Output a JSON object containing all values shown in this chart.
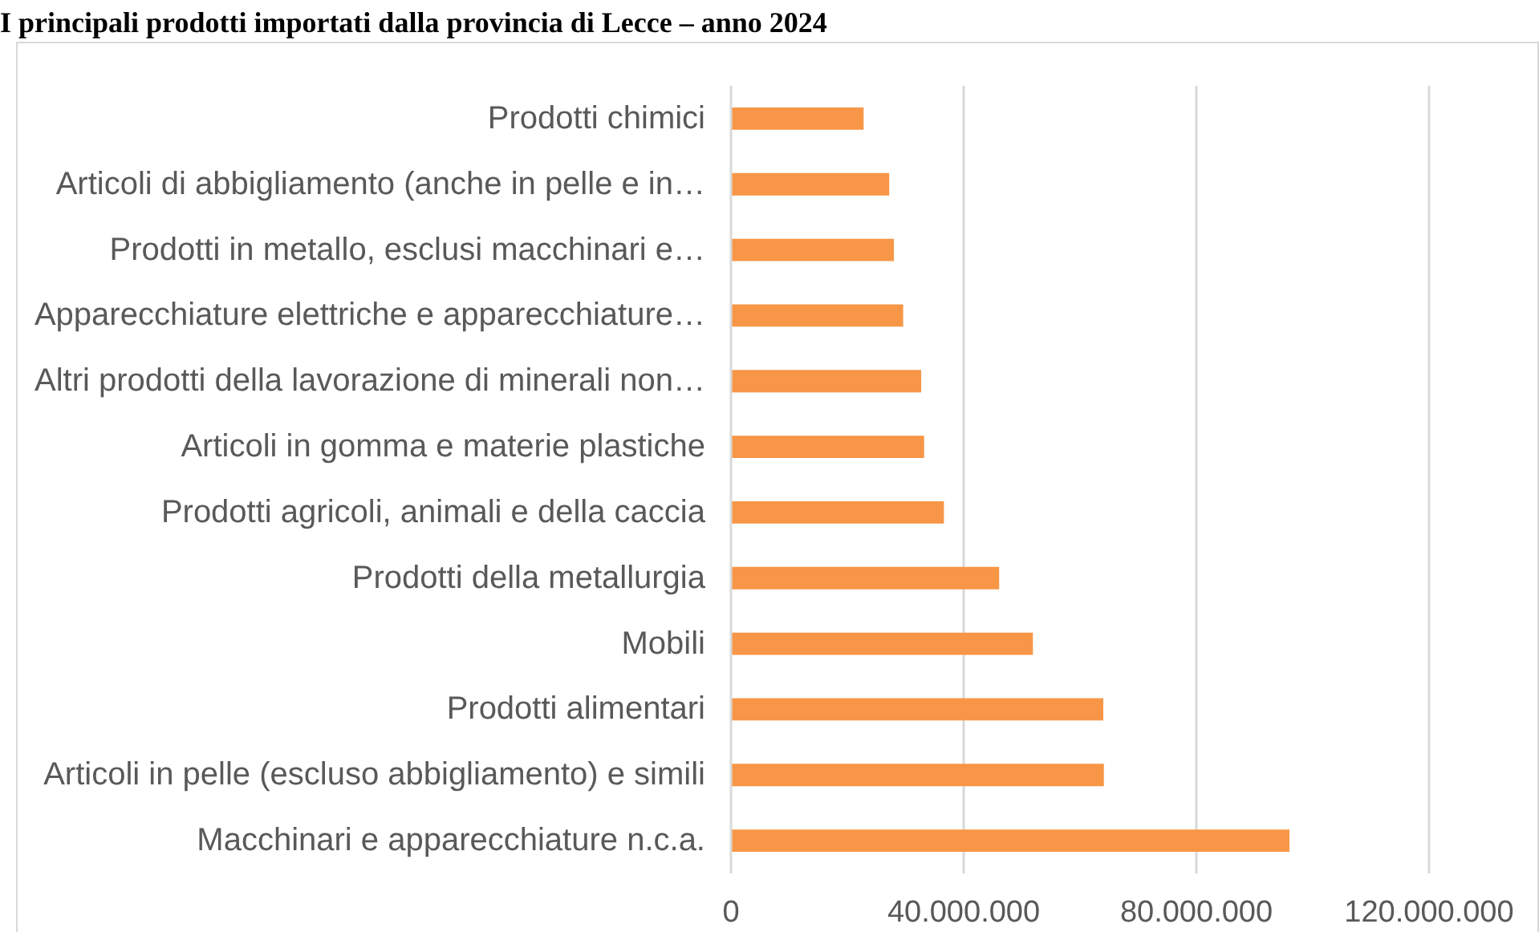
{
  "chart_data": {
    "type": "bar",
    "orientation": "horizontal",
    "title": "I principali prodotti importati dalla provincia di Lecce – anno 2024",
    "categories": [
      "Prodotti chimici",
      "Articoli di abbigliamento (anche in pelle e in…",
      "Prodotti in metallo, esclusi macchinari e…",
      "Apparecchiature elettriche e apparecchiature…",
      "Altri prodotti della lavorazione di minerali non…",
      "Articoli in gomma e materie plastiche",
      "Prodotti agricoli, animali e della caccia",
      "Prodotti della metallurgia",
      "Mobili",
      "Prodotti alimentari",
      "Articoli in pelle (escluso abbigliamento) e simili",
      "Macchinari e apparecchiature n.c.a."
    ],
    "values": [
      22800000,
      27200000,
      28000000,
      29600000,
      32700000,
      33200000,
      36600000,
      46100000,
      51900000,
      64000000,
      64100000,
      96000000
    ],
    "color": "#f79646",
    "xlim": [
      0,
      120000000
    ],
    "xticks": [
      0,
      {
        "value": 40000000,
        "label": "40.000.000"
      },
      {
        "value": 80000000,
        "label": "80.000.000"
      },
      {
        "value": 120000000,
        "label": "120.000.000"
      }
    ],
    "grid": "x"
  }
}
